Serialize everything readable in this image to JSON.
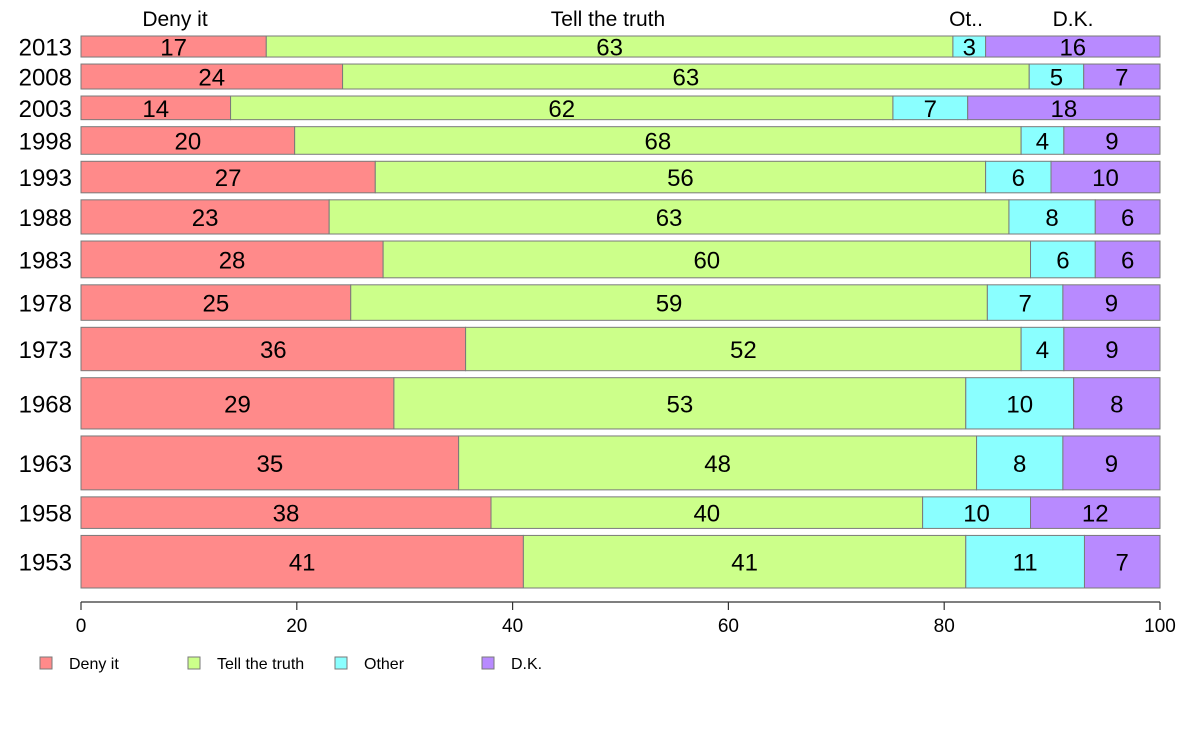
{
  "chart_data": {
    "type": "bar",
    "orientation": "horizontal",
    "stacked": "percent",
    "title": "",
    "xlabel": "",
    "ylabel": "",
    "xlim": [
      0,
      100
    ],
    "x_ticks": [
      0,
      20,
      40,
      60,
      80,
      100
    ],
    "grid": false,
    "legend_position": "bottom",
    "column_headers": [
      "Deny it",
      "Tell the truth",
      "Ot..",
      "D.K."
    ],
    "categories": [
      "2013",
      "2008",
      "2003",
      "1998",
      "1993",
      "1988",
      "1983",
      "1978",
      "1973",
      "1968",
      "1963",
      "1958",
      "1953"
    ],
    "row_weights": [
      16,
      19,
      18,
      21,
      24,
      26,
      28,
      27,
      33,
      39,
      41,
      24,
      40
    ],
    "series": [
      {
        "name": "Deny it",
        "color": "#ff8a8a",
        "values": [
          17,
          24,
          14,
          20,
          27,
          23,
          28,
          25,
          36,
          29,
          35,
          38,
          41
        ]
      },
      {
        "name": "Tell the truth",
        "color": "#ccff8a",
        "values": [
          63,
          63,
          62,
          68,
          56,
          63,
          60,
          59,
          52,
          53,
          48,
          40,
          41
        ]
      },
      {
        "name": "Other",
        "color": "#8affff",
        "values": [
          3,
          5,
          7,
          4,
          6,
          8,
          6,
          7,
          4,
          10,
          8,
          10,
          11
        ]
      },
      {
        "name": "D.K.",
        "color": "#b88aff",
        "values": [
          16,
          7,
          18,
          9,
          10,
          6,
          6,
          9,
          9,
          8,
          9,
          12,
          7
        ]
      }
    ]
  }
}
